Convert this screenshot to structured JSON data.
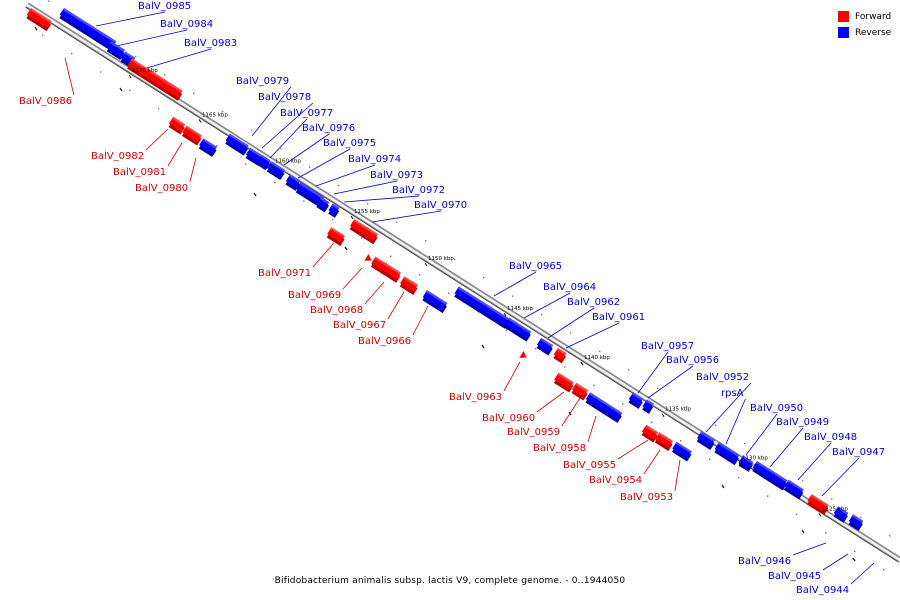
{
  "legend": {
    "forward_label": "Forward",
    "reverse_label": "Reverse",
    "forward_color": "#ff0000",
    "reverse_color": "#0000ff"
  },
  "caption": "Bifidobacterium animalis subsp. lactis V9, complete genome. - 0..1944050",
  "scale_labels": [
    "1170 kbp",
    "1165 kbp",
    "1160 kbp",
    "1155 kbp",
    "1150 kbp",
    "1145 kbp",
    "1140 kbp",
    "1135 kbp",
    "1130 kbp",
    "1125 kbp"
  ],
  "genes": [
    {
      "name": "BalV_0986",
      "strand": "forward"
    },
    {
      "name": "BalV_0985",
      "strand": "reverse"
    },
    {
      "name": "BalV_0984",
      "strand": "reverse"
    },
    {
      "name": "BalV_0983",
      "strand": "reverse"
    },
    {
      "name": "BalV_0982",
      "strand": "forward"
    },
    {
      "name": "BalV_0981",
      "strand": "forward"
    },
    {
      "name": "BalV_0980",
      "strand": "forward"
    },
    {
      "name": "BalV_0979",
      "strand": "reverse"
    },
    {
      "name": "BalV_0978",
      "strand": "reverse"
    },
    {
      "name": "BalV_0977",
      "strand": "reverse"
    },
    {
      "name": "BalV_0976",
      "strand": "reverse"
    },
    {
      "name": "BalV_0975",
      "strand": "reverse"
    },
    {
      "name": "BalV_0974",
      "strand": "reverse"
    },
    {
      "name": "BalV_0973",
      "strand": "reverse"
    },
    {
      "name": "BalV_0972",
      "strand": "reverse"
    },
    {
      "name": "BalV_0970",
      "strand": "reverse"
    },
    {
      "name": "BalV_0971",
      "strand": "forward"
    },
    {
      "name": "BalV_0969",
      "strand": "forward"
    },
    {
      "name": "BalV_0968",
      "strand": "forward"
    },
    {
      "name": "BalV_0967",
      "strand": "forward"
    },
    {
      "name": "BalV_0966",
      "strand": "forward"
    },
    {
      "name": "BalV_0965",
      "strand": "reverse"
    },
    {
      "name": "BalV_0964",
      "strand": "reverse"
    },
    {
      "name": "BalV_0962",
      "strand": "reverse"
    },
    {
      "name": "BalV_0961",
      "strand": "reverse"
    },
    {
      "name": "BalV_0963",
      "strand": "forward"
    },
    {
      "name": "BalV_0960",
      "strand": "forward"
    },
    {
      "name": "BalV_0959",
      "strand": "forward"
    },
    {
      "name": "BalV_0958",
      "strand": "forward"
    },
    {
      "name": "BalV_0957",
      "strand": "reverse"
    },
    {
      "name": "BalV_0956",
      "strand": "reverse"
    },
    {
      "name": "BalV_0952",
      "strand": "reverse"
    },
    {
      "name": "rpsA",
      "strand": "reverse"
    },
    {
      "name": "BalV_0950",
      "strand": "reverse"
    },
    {
      "name": "BalV_0949",
      "strand": "reverse"
    },
    {
      "name": "BalV_0948",
      "strand": "reverse"
    },
    {
      "name": "BalV_0947",
      "strand": "reverse"
    },
    {
      "name": "BalV_0955",
      "strand": "forward"
    },
    {
      "name": "BalV_0954",
      "strand": "forward"
    },
    {
      "name": "BalV_0953",
      "strand": "forward"
    },
    {
      "name": "BalV_0946",
      "strand": "reverse"
    },
    {
      "name": "BalV_0945",
      "strand": "reverse"
    },
    {
      "name": "BalV_0944",
      "strand": "reverse"
    }
  ]
}
